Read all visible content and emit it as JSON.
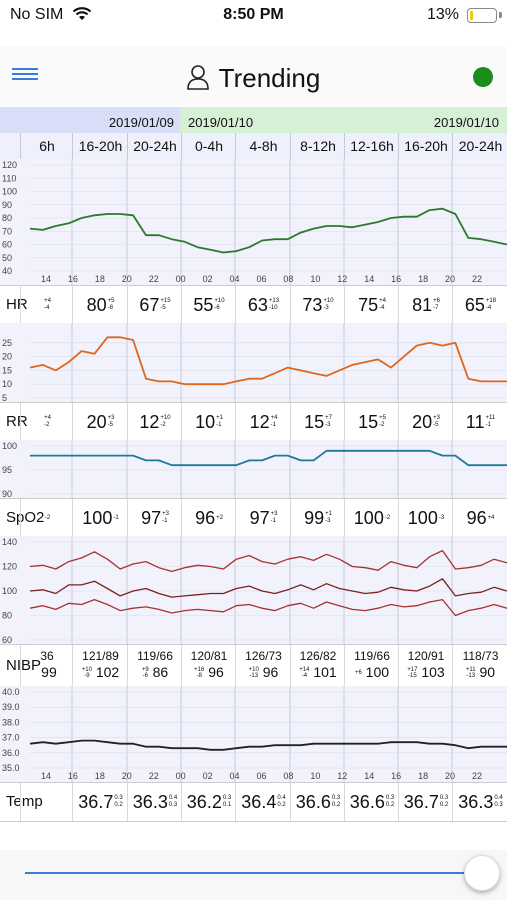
{
  "status_bar": {
    "carrier": "No SIM",
    "time": "8:50 PM",
    "battery": "13%",
    "battery_level": 0.13
  },
  "navbar": {
    "title": "Trending",
    "status_color": "#1c8c1c"
  },
  "dates": [
    {
      "label": "2019/01/09",
      "cols_from": 1,
      "cols_to": 2
    },
    {
      "label": "2019/01/10",
      "cols_from": 3,
      "cols_to": 6
    },
    {
      "label": "2019/01/10",
      "cols_from": 7,
      "cols_to": 8
    }
  ],
  "periods": [
    "6h",
    "16-20h",
    "20-24h",
    "0-4h",
    "4-8h",
    "8-12h",
    "12-16h",
    "16-20h",
    "20-24h"
  ],
  "hour_ticks": [
    "14",
    "16",
    "18",
    "20",
    "22",
    "00",
    "02",
    "04",
    "06",
    "08",
    "10",
    "12",
    "14",
    "16",
    "18",
    "20",
    "22"
  ],
  "charts": {
    "hr": {
      "label": "HR",
      "color": "#2b7a2b",
      "ymin": 40,
      "ymax": 120,
      "ticks": [
        40,
        50,
        60,
        70,
        80,
        90,
        100,
        110,
        120
      ],
      "series": [
        72,
        71,
        74,
        76,
        80,
        82,
        83,
        83,
        82,
        67,
        67,
        64,
        62,
        58,
        56,
        54,
        55,
        58,
        63,
        64,
        64,
        69,
        72,
        74,
        74,
        73,
        75,
        77,
        80,
        81,
        81,
        86,
        87,
        83,
        65,
        64,
        62,
        60
      ]
    },
    "rr": {
      "label": "RR",
      "color": "#e0661b",
      "ymin": 5,
      "ymax": 30,
      "ticks": [
        5,
        10,
        15,
        20,
        25
      ],
      "series": [
        16,
        17,
        15,
        18,
        22,
        21,
        27,
        27,
        26,
        12,
        11,
        11,
        10,
        10,
        10,
        10,
        11,
        12,
        12,
        14,
        16,
        15,
        14,
        13,
        15,
        17,
        18,
        19,
        16,
        20,
        24,
        25,
        24,
        25,
        12,
        11,
        11,
        11
      ]
    },
    "spo2": {
      "label": "SpO2",
      "color": "#1f7a99",
      "ymin": 90,
      "ymax": 100,
      "ticks": [
        90,
        95,
        100
      ],
      "series": [
        98,
        98,
        98,
        98,
        98,
        98,
        98,
        98,
        98,
        97,
        97,
        96,
        96,
        96,
        96,
        96,
        96,
        97,
        97,
        98,
        98,
        97,
        97,
        99,
        99,
        99,
        99,
        99,
        99,
        99,
        99,
        99,
        98,
        98,
        96,
        96,
        96,
        96
      ]
    },
    "nibp": {
      "label": "NIBP",
      "color": "#a83232",
      "ymin": 60,
      "ymax": 140,
      "ticks": [
        60,
        80,
        100,
        120,
        140
      ],
      "systolic": [
        120,
        121,
        118,
        124,
        127,
        132,
        126,
        118,
        122,
        124,
        119,
        116,
        119,
        121,
        120,
        118,
        126,
        129,
        124,
        122,
        126,
        128,
        125,
        130,
        126,
        120,
        119,
        117,
        124,
        121,
        119,
        128,
        133,
        118,
        119,
        121,
        126,
        123
      ],
      "mean": [
        100,
        101,
        98,
        105,
        105,
        108,
        102,
        96,
        100,
        102,
        98,
        95,
        96,
        97,
        98,
        98,
        102,
        104,
        100,
        98,
        101,
        105,
        101,
        106,
        102,
        100,
        98,
        99,
        103,
        101,
        100,
        104,
        110,
        96,
        98,
        99,
        103,
        100
      ],
      "diastolic": [
        86,
        88,
        85,
        90,
        89,
        93,
        89,
        84,
        86,
        87,
        85,
        82,
        84,
        85,
        84,
        83,
        88,
        89,
        86,
        84,
        88,
        90,
        86,
        91,
        88,
        85,
        84,
        86,
        89,
        87,
        88,
        91,
        93,
        80,
        84,
        86,
        89,
        86
      ]
    },
    "temp": {
      "label": "Temp",
      "color": "#222222",
      "ymin": 35,
      "ymax": 40,
      "ticks": [
        "35.0",
        "36.0",
        "37.0",
        "38.0",
        "39.0",
        "40.0"
      ],
      "series": [
        36.6,
        36.7,
        36.6,
        36.7,
        36.8,
        36.8,
        36.7,
        36.6,
        36.6,
        36.4,
        36.4,
        36.3,
        36.3,
        36.3,
        36.2,
        36.2,
        36.3,
        36.4,
        36.4,
        36.5,
        36.5,
        36.5,
        36.6,
        36.6,
        36.6,
        36.6,
        36.6,
        36.6,
        36.7,
        36.7,
        36.7,
        36.6,
        36.6,
        36.5,
        36.3,
        36.4,
        36.4,
        36.4
      ]
    }
  },
  "values": {
    "hr": [
      {
        "v": "",
        "d": "+4\n-4"
      },
      {
        "v": "80",
        "d": "+5\n-8"
      },
      {
        "v": "67",
        "d": "+15\n-5"
      },
      {
        "v": "55",
        "d": "+10\n-6"
      },
      {
        "v": "63",
        "d": "+13\n-10"
      },
      {
        "v": "73",
        "d": "+10\n-3"
      },
      {
        "v": "75",
        "d": "+4\n-4"
      },
      {
        "v": "81",
        "d": "+6\n-7"
      },
      {
        "v": "65",
        "d": "+18\n-4"
      }
    ],
    "rr": [
      {
        "v": "",
        "d": "+4\n-2"
      },
      {
        "v": "20",
        "d": "+3\n-5"
      },
      {
        "v": "12",
        "d": "+10\n-2"
      },
      {
        "v": "10",
        "d": "+1\n-1"
      },
      {
        "v": "12",
        "d": "+4\n-1"
      },
      {
        "v": "15",
        "d": "+7\n-3"
      },
      {
        "v": "15",
        "d": "+5\n-2"
      },
      {
        "v": "20",
        "d": "+3\n-5"
      },
      {
        "v": "11",
        "d": "+11\n-1"
      }
    ],
    "spo2": [
      {
        "v": "",
        "d": "-2"
      },
      {
        "v": "100",
        "d": "-1"
      },
      {
        "v": "97",
        "d": "+3\n-1"
      },
      {
        "v": "96",
        "d": "+2"
      },
      {
        "v": "97",
        "d": "+3\n-1"
      },
      {
        "v": "99",
        "d": "+1\n-3"
      },
      {
        "v": "100",
        "d": "-2"
      },
      {
        "v": "100",
        "d": "-3"
      },
      {
        "v": "96",
        "d": "+4"
      }
    ],
    "nibp": [
      {
        "top": "36",
        "bot": "99",
        "d": ""
      },
      {
        "top": "121/89",
        "bot": "102",
        "d": "+10\n-9"
      },
      {
        "top": "119/66",
        "bot": "86",
        "d": "+9\n-6"
      },
      {
        "top": "120/81",
        "bot": "96",
        "d": "+16\n-8"
      },
      {
        "top": "126/73",
        "bot": "96",
        "d": "+10\n-13"
      },
      {
        "top": "126/82",
        "bot": "101",
        "d": "+14\n-4"
      },
      {
        "top": "119/66",
        "bot": "100",
        "d": "+6"
      },
      {
        "top": "120/91",
        "bot": "103",
        "d": "+17\n-15"
      },
      {
        "top": "118/73",
        "bot": "90",
        "d": "+11\n-13"
      }
    ],
    "temp": [
      {
        "v": "",
        "d": ""
      },
      {
        "v": "36.7",
        "d": "0.3\n0.2"
      },
      {
        "v": "36.3",
        "d": "0.4\n0.3"
      },
      {
        "v": "36.2",
        "d": "0.3\n0.1"
      },
      {
        "v": "36.4",
        "d": "0.4\n0.2"
      },
      {
        "v": "36.6",
        "d": "0.3\n0.2"
      },
      {
        "v": "36.6",
        "d": "0.3\n0.2"
      },
      {
        "v": "36.7",
        "d": "0.3\n0.2"
      },
      {
        "v": "36.3",
        "d": "0.4\n0.3"
      }
    ]
  }
}
